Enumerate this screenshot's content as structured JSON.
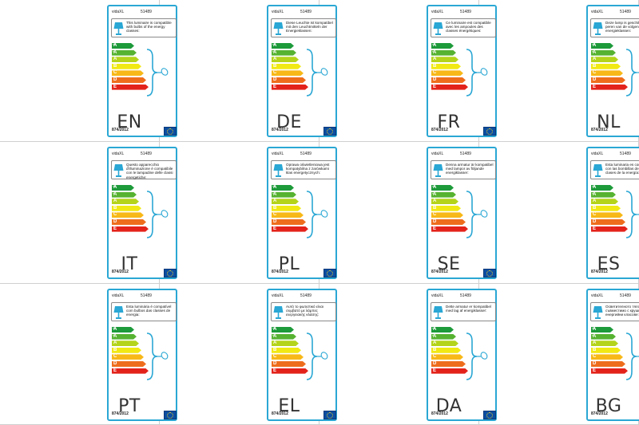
{
  "sheet": {
    "brand": "vidaXL",
    "model": "51489",
    "regulation": "874/2012",
    "energy_classes": [
      {
        "letter": "A",
        "plus": "++",
        "color": "#1d9a3a"
      },
      {
        "letter": "A",
        "plus": "+",
        "color": "#56b231"
      },
      {
        "letter": "A",
        "plus": "",
        "color": "#b4d31b"
      },
      {
        "letter": "B",
        "plus": "",
        "color": "#f1e913"
      },
      {
        "letter": "C",
        "plus": "",
        "color": "#f7b818"
      },
      {
        "letter": "D",
        "plus": "",
        "color": "#ee6d1d"
      },
      {
        "letter": "E",
        "plus": "",
        "color": "#e3231b"
      }
    ],
    "accent_color": "#2aa7d4",
    "labels": [
      {
        "lang": "EN",
        "text": "This luminaire is compatible with bulbs of the energy classes:"
      },
      {
        "lang": "DE",
        "text": "Diese Leuchte ist kompatibel mit den Leuchtmitteln der Energieklassen:"
      },
      {
        "lang": "FR",
        "text": "Ce luminaire est compatible avec les ampoules des classes énergétiques:"
      },
      {
        "lang": "NL",
        "text": "Deze lamp is geschikt voor peren van de volgend energieklassen:"
      },
      {
        "lang": "IT",
        "text": "Questo apparecchio d'illuminazione è compatibile con le lampadine delle classi energetiche:"
      },
      {
        "lang": "PL",
        "text": "Oprawa oświetleniowa jest kompatybilna z żarówkami klas energetycznych:"
      },
      {
        "lang": "SE",
        "text": "Denna armatur är kompatibel med lampor av följande energiklasser:"
      },
      {
        "lang": "ES",
        "text": "Esta luminaria es compatible con las bombillas de las clases de la energía:"
      },
      {
        "lang": "PT",
        "text": "Esta luminária é compatível com bulbos das classes de energia:"
      },
      {
        "lang": "EL",
        "text": "Αυτό το φωτιστικό είναι συμβατό με λάμπες ενεργειακής κλάσης:"
      },
      {
        "lang": "DA",
        "text": "Dette armatur er kompatibel med lag af energiklasser:"
      },
      {
        "lang": "BG",
        "text": "Осветителното тяло е съвместимо с крушки от енергийни класове:"
      }
    ]
  }
}
